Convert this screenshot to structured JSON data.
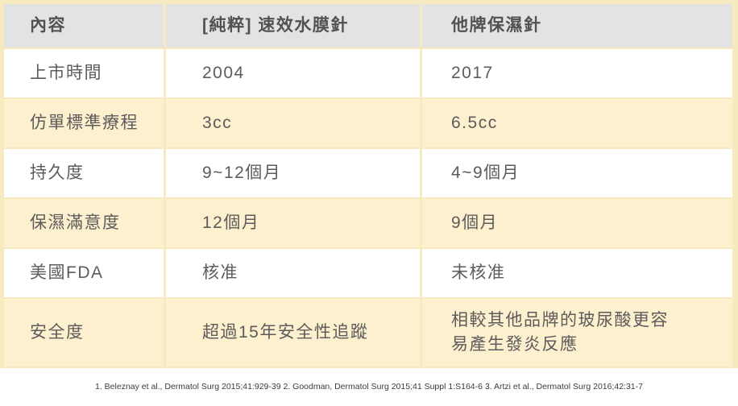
{
  "chart_data": {
    "type": "table",
    "title": "",
    "columns": [
      "內容",
      "[純粹] 速效水膜針",
      "他牌保濕針"
    ],
    "rows": [
      [
        "上市時間",
        "2004",
        "2017"
      ],
      [
        "仿單標準療程",
        "3cc",
        "6.5cc"
      ],
      [
        "持久度",
        "9~12個月",
        "4~9個月"
      ],
      [
        "保濕滿意度",
        "12個月",
        "9個月"
      ],
      [
        "美國FDA",
        "核准",
        "未核准"
      ],
      [
        "安全度",
        "超過15年安全性追蹤",
        "相較其他品牌的玻尿酸更容易產生發炎反應"
      ]
    ],
    "footnote": "1. Beleznay et al., Dermatol Surg 2015;41:929-39 2. Goodman, Dermatol Surg 2015;41 Suppl 1:S164-6 3. Artzi et al., Dermatol Surg 2016;42:31-7",
    "layout_hints": {
      "alternating_row_highlight": "rows 2, 4, 6 highlighted yellow",
      "grid": "cream gaps between cells"
    }
  },
  "colors": {
    "header_bg": "#e4e3e4",
    "highlight_row_bg": "#fdf0cf",
    "frame_and_separator": "#f8eabf",
    "body_text": "#5d5b5b",
    "header_text": "#545152",
    "footnote_text": "#3c3c3c"
  }
}
